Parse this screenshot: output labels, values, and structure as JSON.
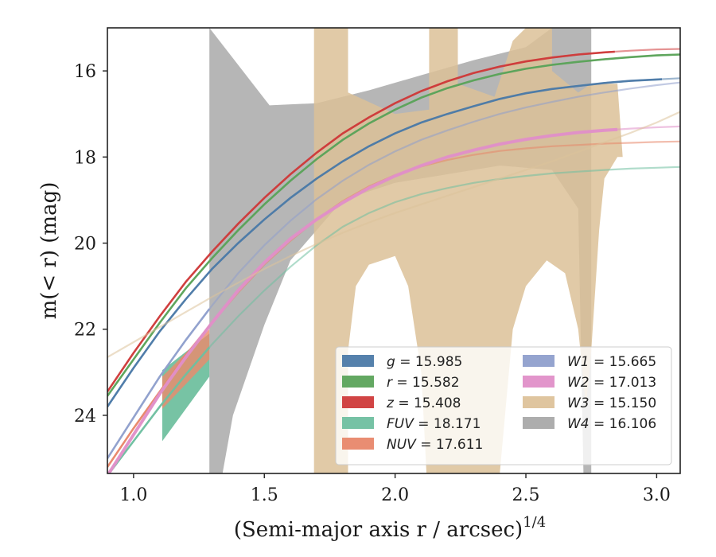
{
  "chart_data": {
    "type": "line",
    "title": "",
    "xlabel": "(Semi-major axis r / arcsec)",
    "xlabel_sup": "1/4",
    "ylabel": "m(< r) (mag)",
    "xlim": [
      0.9,
      3.09
    ],
    "ylim": [
      25.35,
      15.0
    ],
    "y_inverted": true,
    "grid": false,
    "legend_position": "lower-right",
    "x_ticks": [
      1.0,
      1.5,
      2.0,
      2.5,
      3.0
    ],
    "x_tick_labels": [
      "1.0",
      "1.5",
      "2.0",
      "2.5",
      "3.0"
    ],
    "y_ticks": [
      16,
      18,
      20,
      22,
      24
    ],
    "y_tick_labels": [
      "16",
      "18",
      "20",
      "22",
      "24"
    ],
    "series": [
      {
        "name": "g = 15.985",
        "label_var": "g",
        "label_val": "= 15.985",
        "color": "#4c7aa8",
        "data_end": 3.02,
        "x": [
          0.9,
          1.0,
          1.1,
          1.2,
          1.3,
          1.4,
          1.5,
          1.6,
          1.7,
          1.8,
          1.9,
          2.0,
          2.1,
          2.2,
          2.3,
          2.4,
          2.5,
          2.6,
          2.7,
          2.8,
          2.9,
          3.0,
          3.09
        ],
        "y": [
          23.8,
          22.9,
          22.05,
          21.3,
          20.6,
          20.0,
          19.45,
          18.95,
          18.5,
          18.1,
          17.75,
          17.45,
          17.2,
          17.0,
          16.82,
          16.65,
          16.52,
          16.42,
          16.35,
          16.28,
          16.23,
          16.2,
          16.17
        ]
      },
      {
        "name": "r = 15.582",
        "label_var": "r",
        "label_val": "= 15.582",
        "color": "#5ba35a",
        "data_end": 3.09,
        "x": [
          0.9,
          1.0,
          1.1,
          1.2,
          1.3,
          1.4,
          1.5,
          1.6,
          1.7,
          1.8,
          1.9,
          2.0,
          2.1,
          2.2,
          2.3,
          2.4,
          2.5,
          2.6,
          2.7,
          2.8,
          2.9,
          3.0,
          3.09
        ],
        "y": [
          23.55,
          22.7,
          21.85,
          21.05,
          20.35,
          19.7,
          19.1,
          18.55,
          18.05,
          17.6,
          17.22,
          16.9,
          16.62,
          16.4,
          16.22,
          16.07,
          15.95,
          15.86,
          15.79,
          15.73,
          15.68,
          15.64,
          15.62
        ]
      },
      {
        "name": "z = 15.408",
        "label_var": "z",
        "label_val": "= 15.408",
        "color": "#cf3a3a",
        "data_end": 2.84,
        "x": [
          0.9,
          1.0,
          1.1,
          1.2,
          1.3,
          1.4,
          1.5,
          1.6,
          1.7,
          1.8,
          1.9,
          2.0,
          2.1,
          2.2,
          2.3,
          2.4,
          2.5,
          2.6,
          2.7,
          2.8,
          2.9,
          3.0,
          3.09
        ],
        "y": [
          23.45,
          22.55,
          21.7,
          20.9,
          20.2,
          19.55,
          18.95,
          18.4,
          17.9,
          17.45,
          17.08,
          16.75,
          16.47,
          16.24,
          16.05,
          15.9,
          15.78,
          15.69,
          15.62,
          15.57,
          15.53,
          15.5,
          15.49
        ]
      },
      {
        "name": "FUV = 18.171",
        "label_var": "FUV",
        "label_val": "= 18.171",
        "color": "#6fbfa0",
        "data_end": 1.29,
        "x": [
          0.9,
          1.0,
          1.1,
          1.2,
          1.3,
          1.4,
          1.5,
          1.6,
          1.7,
          1.8,
          1.9,
          2.0,
          2.1,
          2.2,
          2.3,
          2.4,
          2.5,
          2.6,
          2.7,
          2.8,
          2.9,
          3.0,
          3.09
        ],
        "y": [
          25.4,
          24.6,
          23.8,
          23.05,
          22.35,
          21.7,
          21.1,
          20.55,
          20.05,
          19.62,
          19.3,
          19.05,
          18.86,
          18.72,
          18.6,
          18.51,
          18.44,
          18.38,
          18.34,
          18.3,
          18.27,
          18.25,
          18.23
        ]
      },
      {
        "name": "NUV = 17.611",
        "label_var": "NUV",
        "label_val": "= 17.611",
        "color": "#e8876a",
        "data_end": 1.29,
        "x": [
          0.9,
          1.0,
          1.1,
          1.2,
          1.3,
          1.4,
          1.5,
          1.6,
          1.7,
          1.8,
          1.9,
          2.0,
          2.1,
          2.2,
          2.3,
          2.4,
          2.5,
          2.6,
          2.7,
          2.8,
          2.9,
          3.0,
          3.09
        ],
        "y": [
          25.2,
          24.3,
          23.45,
          22.6,
          21.85,
          21.15,
          20.5,
          19.95,
          19.45,
          19.02,
          18.68,
          18.42,
          18.22,
          18.07,
          17.95,
          17.86,
          17.8,
          17.75,
          17.72,
          17.69,
          17.67,
          17.65,
          17.64
        ]
      },
      {
        "name": "W1 = 15.665",
        "label_var": "W1",
        "label_val": "= 15.665",
        "color": "#8f9fcc",
        "data_end": 1.29,
        "x": [
          0.9,
          1.0,
          1.1,
          1.2,
          1.3,
          1.4,
          1.5,
          1.6,
          1.7,
          1.8,
          1.9,
          2.0,
          2.1,
          2.2,
          2.3,
          2.4,
          2.5,
          2.6,
          2.7,
          2.8,
          2.9,
          3.0,
          3.09
        ],
        "y": [
          25.0,
          24.05,
          23.1,
          22.25,
          21.45,
          20.7,
          20.05,
          19.48,
          18.98,
          18.55,
          18.18,
          17.87,
          17.6,
          17.38,
          17.18,
          17.0,
          16.85,
          16.72,
          16.6,
          16.5,
          16.41,
          16.33,
          16.27
        ]
      },
      {
        "name": "W2 = 17.013",
        "label_var": "W2",
        "label_val": "= 17.013",
        "color": "#e08fc8",
        "data_end": 2.85,
        "x": [
          0.9,
          1.0,
          1.1,
          1.2,
          1.3,
          1.4,
          1.5,
          1.6,
          1.7,
          1.8,
          1.9,
          2.0,
          2.1,
          2.2,
          2.3,
          2.4,
          2.5,
          2.6,
          2.7,
          2.8,
          2.9,
          3.0,
          3.09
        ],
        "y": [
          25.4,
          24.45,
          23.5,
          22.65,
          21.85,
          21.1,
          20.45,
          19.9,
          19.45,
          19.06,
          18.72,
          18.44,
          18.2,
          18.0,
          17.84,
          17.7,
          17.59,
          17.5,
          17.43,
          17.38,
          17.34,
          17.31,
          17.29
        ]
      },
      {
        "name": "W3 = 15.150",
        "label_var": "W3",
        "label_val": "= 15.150",
        "color": "#ddc29a",
        "data_end": 0.9,
        "x": [
          0.9,
          1.0,
          1.1,
          1.2,
          1.3,
          1.4,
          1.5,
          1.6,
          1.7,
          1.8,
          1.9,
          2.0,
          2.1,
          2.2,
          2.3,
          2.4,
          2.5,
          2.6,
          2.7,
          2.8,
          2.9,
          3.0,
          3.09
        ],
        "y": [
          22.65,
          22.3,
          21.95,
          21.6,
          21.25,
          20.92,
          20.6,
          20.3,
          20.02,
          19.76,
          19.52,
          19.3,
          19.1,
          18.9,
          18.7,
          18.5,
          18.3,
          18.1,
          17.88,
          17.66,
          17.44,
          17.2,
          16.95
        ]
      },
      {
        "name": "W4 = 16.106",
        "label_var": "W4",
        "label_val": "= 16.106",
        "color": "#a9a9a9",
        "data_end": 0.9,
        "x": [],
        "y": []
      }
    ],
    "bands": [
      {
        "series": "W4",
        "color": "#a9a9a9",
        "opacity": 0.85,
        "upper": [
          [
            1.29,
            15.0
          ],
          [
            1.52,
            16.8
          ],
          [
            1.7,
            16.75
          ],
          [
            1.9,
            16.45
          ],
          [
            2.1,
            16.1
          ],
          [
            2.3,
            15.75
          ],
          [
            2.5,
            15.45
          ],
          [
            2.6,
            15.0
          ],
          [
            2.75,
            15.0
          ],
          [
            2.75,
            25.35
          ]
        ],
        "lower": [
          [
            2.72,
            25.35
          ],
          [
            2.7,
            19.2
          ],
          [
            2.6,
            18.3
          ],
          [
            2.4,
            18.2
          ],
          [
            2.2,
            18.4
          ],
          [
            2.0,
            18.6
          ],
          [
            1.8,
            19.0
          ],
          [
            1.6,
            20.4
          ],
          [
            1.5,
            21.9
          ],
          [
            1.38,
            24.0
          ],
          [
            1.34,
            25.35
          ],
          [
            1.29,
            25.35
          ]
        ]
      },
      {
        "series": "W3",
        "color": "#dcc198",
        "opacity": 0.85,
        "polygon": [
          [
            1.69,
            15.0
          ],
          [
            1.82,
            15.0
          ],
          [
            1.82,
            16.5
          ],
          [
            2.0,
            17.0
          ],
          [
            2.13,
            16.9
          ],
          [
            2.13,
            15.0
          ],
          [
            2.24,
            15.0
          ],
          [
            2.24,
            16.3
          ],
          [
            2.38,
            16.6
          ],
          [
            2.45,
            15.3
          ],
          [
            2.5,
            15.0
          ],
          [
            2.6,
            15.0
          ],
          [
            2.6,
            16.0
          ],
          [
            2.7,
            16.5
          ],
          [
            2.75,
            16.3
          ],
          [
            2.85,
            16.3
          ],
          [
            2.87,
            18.0
          ],
          [
            2.85,
            18.0
          ],
          [
            2.8,
            18.5
          ],
          [
            2.78,
            19.7
          ],
          [
            2.75,
            22.5
          ],
          [
            2.73,
            23.8
          ],
          [
            2.7,
            22.0
          ],
          [
            2.65,
            20.7
          ],
          [
            2.58,
            20.4
          ],
          [
            2.5,
            21.0
          ],
          [
            2.45,
            22.0
          ],
          [
            2.4,
            25.35
          ],
          [
            2.12,
            25.35
          ],
          [
            2.1,
            23.0
          ],
          [
            2.05,
            21.0
          ],
          [
            2.0,
            20.3
          ],
          [
            1.95,
            20.4
          ],
          [
            1.9,
            20.5
          ],
          [
            1.85,
            21.0
          ],
          [
            1.82,
            22.5
          ],
          [
            1.82,
            25.35
          ],
          [
            1.69,
            25.35
          ]
        ]
      },
      {
        "series": "FUV",
        "color": "#5fb894",
        "opacity": 0.85,
        "polygon": [
          [
            1.11,
            22.95
          ],
          [
            1.29,
            22.1
          ],
          [
            1.29,
            23.1
          ],
          [
            1.11,
            24.6
          ]
        ]
      },
      {
        "series": "NUV",
        "color": "#ec8a6c",
        "opacity": 0.8,
        "polygon": [
          [
            1.11,
            23.1
          ],
          [
            1.29,
            22.0
          ],
          [
            1.29,
            22.7
          ],
          [
            1.11,
            23.85
          ]
        ]
      }
    ]
  }
}
